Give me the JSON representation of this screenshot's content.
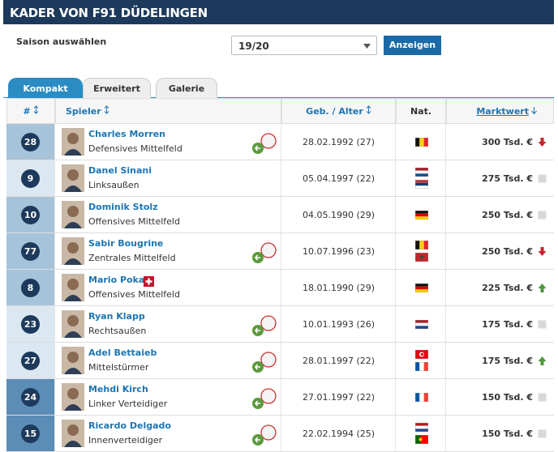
{
  "header": {
    "title": "KADER VON F91 DÜDELINGEN"
  },
  "season": {
    "label": "Saison auswählen",
    "selected": "19/20",
    "button": "Anzeigen"
  },
  "tabs": [
    "Kompakt",
    "Erweitert",
    "Galerie"
  ],
  "table": {
    "columns": [
      "#",
      "Spieler",
      "Geb. / Alter",
      "Nat.",
      "Marktwert"
    ],
    "rows": [
      {
        "number": "28",
        "name": "Charles Morren",
        "position": "Defensives Mittelfeld",
        "born": "28.02.1992 (27)",
        "value": "300 Tsd. €"
      },
      {
        "number": "9",
        "name": "Danel Sinani",
        "position": "Linksaußen",
        "born": "05.04.1997 (22)",
        "value": "275 Tsd. €"
      },
      {
        "number": "10",
        "name": "Dominik Stolz",
        "position": "Offensives Mittelfeld",
        "born": "04.05.1990 (29)",
        "value": "250 Tsd. €"
      },
      {
        "number": "77",
        "name": "Sabir Bougrine",
        "position": "Zentrales Mittelfeld",
        "born": "10.07.1996 (23)",
        "value": "250 Tsd. €"
      },
      {
        "number": "8",
        "name": "Mario Pokar",
        "position": "Offensives Mittelfeld",
        "born": "18.01.1990 (29)",
        "value": "225 Tsd. €"
      },
      {
        "number": "23",
        "name": "Ryan Klapp",
        "position": "Rechtsaußen",
        "born": "10.01.1993 (26)",
        "value": "175 Tsd. €"
      },
      {
        "number": "27",
        "name": "Adel Bettaieb",
        "position": "Mittelstürmer",
        "born": "28.01.1997 (22)",
        "value": "175 Tsd. €"
      },
      {
        "number": "24",
        "name": "Mehdi Kirch",
        "position": "Linker Verteidiger",
        "born": "27.01.1997 (22)",
        "value": "150 Tsd. €"
      },
      {
        "number": "15",
        "name": "Ricardo Delgado",
        "position": "Innenverteidiger",
        "born": "22.02.1994 (25)",
        "value": "150 Tsd. €"
      }
    ]
  }
}
